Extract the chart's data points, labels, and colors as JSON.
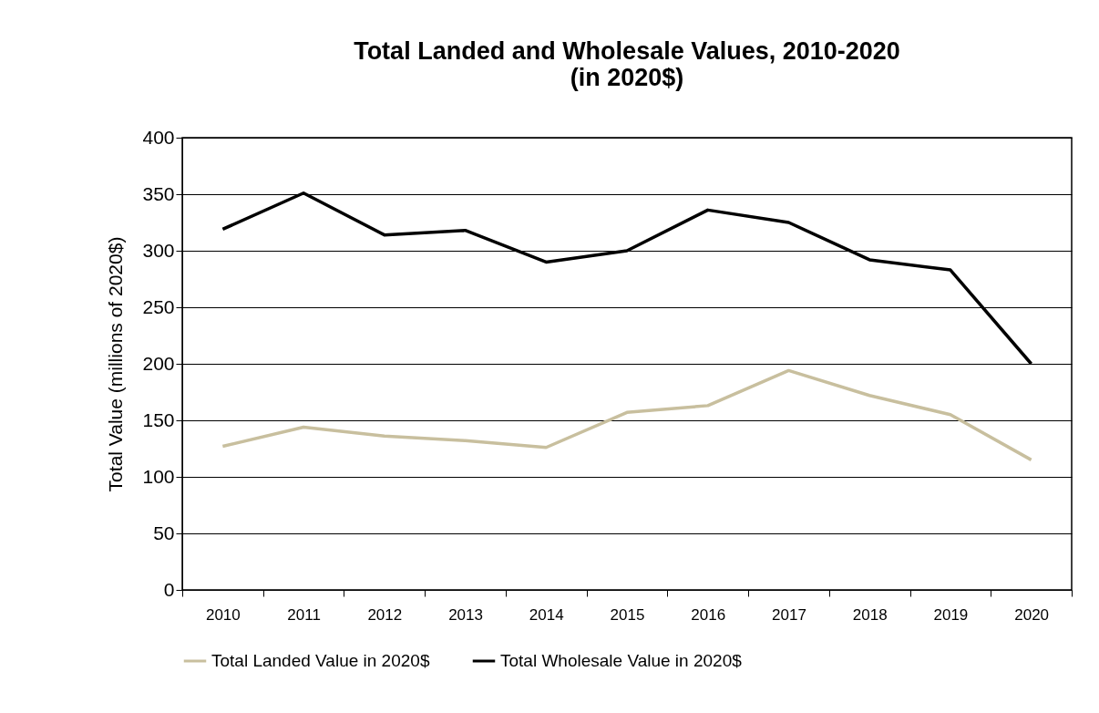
{
  "chart_data": {
    "type": "line",
    "title": [
      "Total Landed and Wholesale Values, 2010-2020",
      "(in 2020$)"
    ],
    "ylabel": "Total Value (millions of 2020$)",
    "categories": [
      "2010",
      "2011",
      "2012",
      "2013",
      "2014",
      "2015",
      "2016",
      "2017",
      "2018",
      "2019",
      "2020"
    ],
    "series": [
      {
        "name": "Total Landed Value in 2020$",
        "color": "#c8bf9e",
        "values": [
          127,
          144,
          136,
          132,
          126,
          157,
          163,
          194,
          172,
          155,
          115
        ]
      },
      {
        "name": "Total Wholesale Value in 2020$",
        "color": "#000000",
        "values": [
          319,
          351,
          314,
          318,
          290,
          300,
          336,
          325,
          292,
          283,
          200
        ]
      }
    ],
    "ylim": [
      0,
      400
    ],
    "yticks": [
      0,
      50,
      100,
      150,
      200,
      250,
      300,
      350,
      400
    ],
    "grid": "y",
    "legend": "bottom",
    "marker": "none",
    "line_style": "solid"
  }
}
